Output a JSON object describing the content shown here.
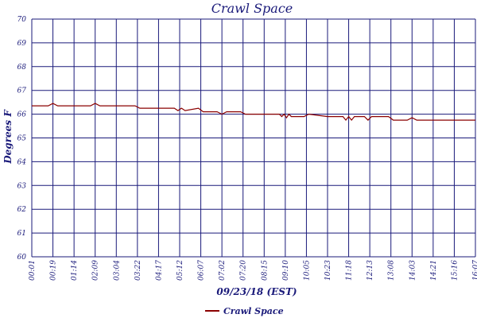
{
  "chart_data": {
    "type": "line",
    "title": "Crawl Space",
    "xlabel": "09/23/18 (EST)",
    "ylabel": "Degrees F",
    "ylim": [
      60,
      70
    ],
    "y_ticks": [
      60,
      61,
      62,
      63,
      64,
      65,
      66,
      67,
      68,
      69,
      70
    ],
    "x_tick_labels": [
      "00:01",
      "00:19",
      "01:14",
      "02:09",
      "03:04",
      "03:22",
      "04:17",
      "05:12",
      "06:07",
      "07:02",
      "07:20",
      "08:15",
      "09:10",
      "10:05",
      "10:23",
      "11:18",
      "12:13",
      "13:08",
      "14:03",
      "14:21",
      "15:16",
      "16:07"
    ],
    "grid": true,
    "legend_position": "bottom-left",
    "series": [
      {
        "name": "Crawl Space",
        "color": "#8b0000",
        "x": [
          "00:01",
          "00:19",
          "00:19",
          "00:19",
          "02:09",
          "02:09",
          "02:09",
          "03:22",
          "03:22",
          "05:12",
          "05:12",
          "05:12",
          "05:12",
          "06:07",
          "06:07",
          "07:02",
          "07:02",
          "07:02",
          "07:20",
          "07:20",
          "09:10",
          "09:10",
          "09:10",
          "09:10",
          "09:10",
          "09:10",
          "10:05",
          "10:05",
          "10:23",
          "11:18",
          "11:18",
          "11:18",
          "11:18",
          "11:18",
          "12:13",
          "12:13",
          "12:13",
          "12:13",
          "13:08",
          "13:08",
          "14:03",
          "14:03",
          "14:03",
          "16:07"
        ],
        "y": [
          66.35,
          66.35,
          66.45,
          66.35,
          66.35,
          66.45,
          66.35,
          66.35,
          66.25,
          66.25,
          66.15,
          66.25,
          66.15,
          66.25,
          66.1,
          66.1,
          66.0,
          66.1,
          66.1,
          66.0,
          66.0,
          65.9,
          66.0,
          65.85,
          66.0,
          65.9,
          65.9,
          66.0,
          65.9,
          65.9,
          65.75,
          65.9,
          65.75,
          65.9,
          65.9,
          65.75,
          65.9,
          65.9,
          65.9,
          65.75,
          65.75,
          65.85,
          65.75,
          65.75
        ]
      }
    ]
  }
}
